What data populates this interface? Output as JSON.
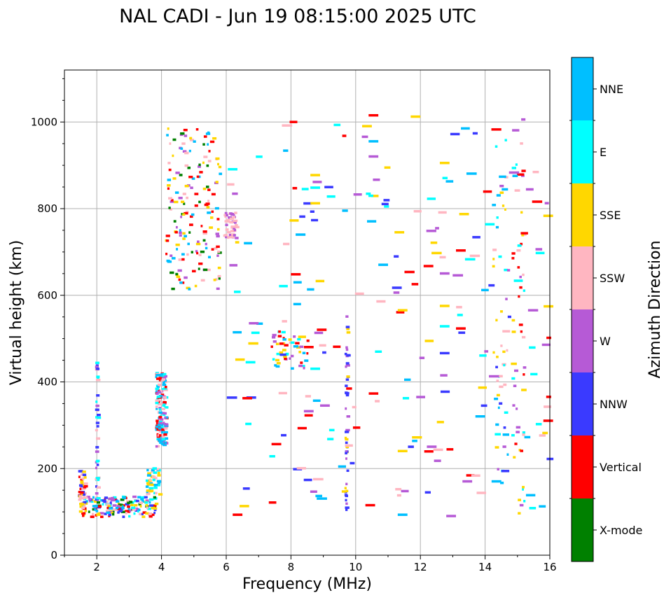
{
  "chart_data": {
    "type": "scatter",
    "title": "NAL CADI - Jun 19 08:15:00 2025 UTC",
    "xlabel": "Frequency (MHz)",
    "ylabel": "Virtual height (km)",
    "xlim": [
      1,
      16
    ],
    "ylim": [
      0,
      1120
    ],
    "xticks": [
      2,
      4,
      6,
      8,
      10,
      12,
      14,
      16
    ],
    "yticks": [
      0,
      200,
      400,
      600,
      800,
      1000
    ],
    "grid": true,
    "colorbar": {
      "label": "Azimuth Direction",
      "position": "right",
      "categories": [
        {
          "name": "X-mode",
          "color": "#008000"
        },
        {
          "name": "Vertical",
          "color": "#ff0000"
        },
        {
          "name": "NNW",
          "color": "#3a3aff"
        },
        {
          "name": "W",
          "color": "#b65ad6"
        },
        {
          "name": "SSW",
          "color": "#ffb6c1"
        },
        {
          "name": "SSE",
          "color": "#ffd700"
        },
        {
          "name": "E",
          "color": "#00ffff"
        },
        {
          "name": "NNE",
          "color": "#00bfff"
        }
      ]
    },
    "clusters": [
      {
        "name": "low-e-layer",
        "x": [
          1.5,
          3.8
        ],
        "y": [
          88,
          135
        ],
        "density": "dense",
        "dirs": [
          "Vertical",
          "E",
          "NNW",
          "W",
          "SSW",
          "SSE",
          "NNE",
          "X-mode"
        ]
      },
      {
        "name": "low-spike-1.5",
        "x": [
          1.4,
          1.6
        ],
        "y": [
          100,
          195
        ],
        "density": "medium",
        "dirs": [
          "NNW",
          "SSE",
          "Vertical",
          "SSW"
        ]
      },
      {
        "name": "column-2mhz",
        "x": [
          1.94,
          2.0
        ],
        "y": [
          120,
          450
        ],
        "density": "medium",
        "dirs": [
          "NNW",
          "E",
          "W",
          "SSW"
        ]
      },
      {
        "name": "f-layer-rise-3.5",
        "x": [
          3.5,
          3.9
        ],
        "y": [
          140,
          200
        ],
        "density": "medium",
        "dirs": [
          "E",
          "NNE",
          "SSE",
          "SSW"
        ]
      },
      {
        "name": "f-layer-4mhz",
        "x": [
          3.8,
          4.1
        ],
        "y": [
          250,
          420
        ],
        "density": "dense",
        "dirs": [
          "Vertical",
          "E",
          "NNE",
          "W",
          "SSW"
        ]
      },
      {
        "name": "oblique-upper",
        "x": [
          4.1,
          5.8
        ],
        "y": [
          610,
          985
        ],
        "density": "dense",
        "dirs": [
          "Vertical",
          "W",
          "SSW",
          "NNE",
          "X-mode",
          "SSE"
        ]
      },
      {
        "name": "oblique-6mhz",
        "x": [
          5.9,
          6.3
        ],
        "y": [
          730,
          790
        ],
        "density": "medium",
        "dirs": [
          "SSW",
          "W"
        ]
      },
      {
        "name": "mid-scatter-8mhz",
        "x": [
          7.3,
          8.5
        ],
        "y": [
          430,
          520
        ],
        "density": "medium",
        "dirs": [
          "NNE",
          "E",
          "SSE",
          "W",
          "Vertical"
        ]
      },
      {
        "name": "column-9.7mhz",
        "x": [
          9.65,
          9.72
        ],
        "y": [
          90,
          600
        ],
        "density": "medium",
        "dirs": [
          "NNW",
          "W",
          "SSE"
        ]
      },
      {
        "name": "right-column-15mhz",
        "x": [
          14.8,
          15.2
        ],
        "y": [
          90,
          960
        ],
        "density": "medium",
        "dirs": [
          "Vertical",
          "SSE",
          "W",
          "SSW",
          "E"
        ]
      },
      {
        "name": "right-column-14.4mhz",
        "x": [
          14.2,
          14.7
        ],
        "y": [
          120,
          985
        ],
        "density": "medium",
        "dirs": [
          "W",
          "NNW",
          "SSE",
          "NNE",
          "SSW",
          "E"
        ]
      },
      {
        "name": "sparse-field",
        "x": [
          6.0,
          16.0
        ],
        "y": [
          85,
          1020
        ],
        "density": "sparse",
        "dirs": [
          "SSE",
          "Vertical",
          "W",
          "E",
          "NNW",
          "SSW",
          "NNE"
        ]
      }
    ],
    "points": [
      {
        "x": 15.8,
        "y": 310,
        "dir": "Vertical"
      },
      {
        "x": 15.8,
        "y": 783,
        "dir": "SSE"
      },
      {
        "x": 13.7,
        "y": 320,
        "dir": "NNE"
      },
      {
        "x": 12.6,
        "y": 466,
        "dir": "NNW"
      },
      {
        "x": 12.6,
        "y": 905,
        "dir": "SSE"
      },
      {
        "x": 13.1,
        "y": 523,
        "dir": "Vertical"
      },
      {
        "x": 13.1,
        "y": 703,
        "dir": "Vertical"
      },
      {
        "x": 13.2,
        "y": 787,
        "dir": "SSE"
      },
      {
        "x": 6.2,
        "y": 93,
        "dir": "Vertical"
      },
      {
        "x": 8.0,
        "y": 648,
        "dir": "Vertical"
      },
      {
        "x": 10.4,
        "y": 1015,
        "dir": "Vertical"
      },
      {
        "x": 11.7,
        "y": 1012,
        "dir": "SSE"
      },
      {
        "x": 8.6,
        "y": 877,
        "dir": "SSE"
      },
      {
        "x": 8.6,
        "y": 848,
        "dir": "E"
      },
      {
        "x": 8.6,
        "y": 812,
        "dir": "SSE"
      },
      {
        "x": 10.2,
        "y": 990,
        "dir": "SSE"
      },
      {
        "x": 10.4,
        "y": 955,
        "dir": "NNE"
      },
      {
        "x": 10.4,
        "y": 920,
        "dir": "W"
      },
      {
        "x": 12.1,
        "y": 667,
        "dir": "Vertical"
      },
      {
        "x": 12.6,
        "y": 650,
        "dir": "W"
      },
      {
        "x": 12.6,
        "y": 575,
        "dir": "SSE"
      },
      {
        "x": 12.6,
        "y": 528,
        "dir": "E"
      },
      {
        "x": 12.2,
        "y": 250,
        "dir": "W"
      },
      {
        "x": 12.4,
        "y": 243,
        "dir": "SSW"
      },
      {
        "x": 13.3,
        "y": 170,
        "dir": "W"
      },
      {
        "x": 14.2,
        "y": 170,
        "dir": "NNE"
      },
      {
        "x": 11.3,
        "y": 565,
        "dir": "SSE"
      },
      {
        "x": 11.3,
        "y": 240,
        "dir": "SSE"
      },
      {
        "x": 10.3,
        "y": 115,
        "dir": "Vertical"
      },
      {
        "x": 8.9,
        "y": 345,
        "dir": "W"
      },
      {
        "x": 8.4,
        "y": 332,
        "dir": "W"
      },
      {
        "x": 8.6,
        "y": 430,
        "dir": "E"
      },
      {
        "x": 8.4,
        "y": 480,
        "dir": "Vertical"
      },
      {
        "x": 8.8,
        "y": 520,
        "dir": "Vertical"
      },
      {
        "x": 6.5,
        "y": 362,
        "dir": "Vertical"
      },
      {
        "x": 6.6,
        "y": 445,
        "dir": "E"
      },
      {
        "x": 6.7,
        "y": 535,
        "dir": "W"
      },
      {
        "x": 7.4,
        "y": 256,
        "dir": "Vertical"
      },
      {
        "x": 10.7,
        "y": 670,
        "dir": "NNE"
      },
      {
        "x": 11.2,
        "y": 745,
        "dir": "SSE"
      },
      {
        "x": 12.8,
        "y": 90,
        "dir": "W"
      },
      {
        "x": 11.3,
        "y": 93,
        "dir": "NNE"
      }
    ]
  }
}
